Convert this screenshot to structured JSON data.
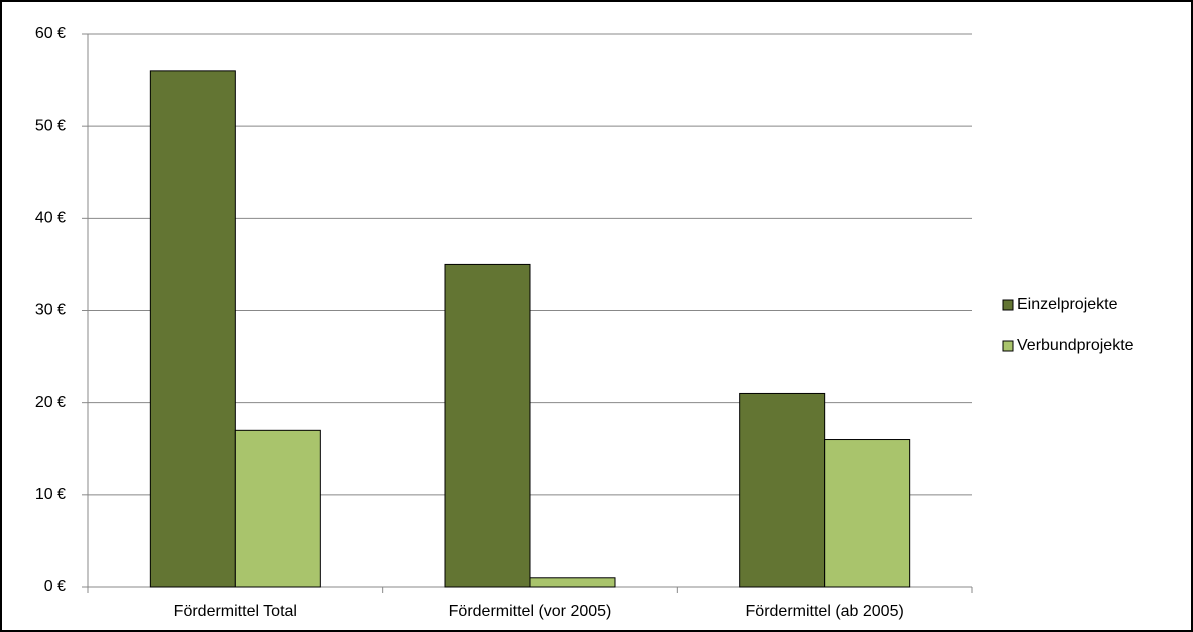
{
  "chart_data": {
    "type": "bar",
    "categories": [
      "Fördermittel Total",
      "Fördermittel (vor 2005)",
      "Fördermittel (ab 2005)"
    ],
    "series": [
      {
        "name": "Einzelprojekte",
        "color": "#637533",
        "values": [
          56,
          35,
          21
        ]
      },
      {
        "name": "Verbundprojekte",
        "color": "#a9c46c",
        "values": [
          17,
          1,
          16
        ]
      }
    ],
    "ylim": [
      0,
      60
    ],
    "yticks": [
      {
        "value": 0,
        "label": "0 €"
      },
      {
        "value": 10,
        "label": "10 €"
      },
      {
        "value": 20,
        "label": "20 €"
      },
      {
        "value": 30,
        "label": "30 €"
      },
      {
        "value": 40,
        "label": "40 €"
      },
      {
        "value": 50,
        "label": "50 €"
      },
      {
        "value": 60,
        "label": "60 €"
      }
    ],
    "grid": true,
    "legend": "right"
  }
}
